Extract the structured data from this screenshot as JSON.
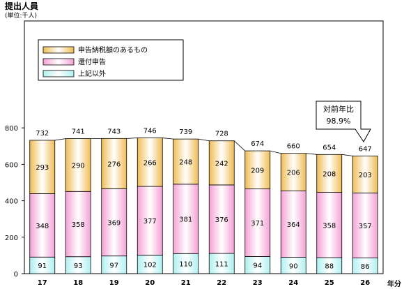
{
  "chart_data": {
    "type": "bar",
    "stacked": true,
    "title": "提出人員",
    "unit": "(単位:千人)",
    "xlabel": "年分",
    "categories": [
      "17",
      "18",
      "19",
      "20",
      "21",
      "22",
      "23",
      "24",
      "25",
      "26"
    ],
    "series": [
      {
        "name": "上記以外",
        "color": "#aef0f0",
        "values": [
          91,
          93,
          97,
          102,
          110,
          111,
          94,
          90,
          88,
          86
        ]
      },
      {
        "name": "還付申告",
        "color": "#f4a0d4",
        "values": [
          348,
          358,
          369,
          377,
          381,
          376,
          371,
          364,
          358,
          357
        ]
      },
      {
        "name": "申告納税額のあるもの",
        "color": "#f0bc52",
        "values": [
          293,
          290,
          276,
          266,
          248,
          242,
          209,
          206,
          208,
          203
        ]
      }
    ],
    "totals": [
      732,
      741,
      743,
      746,
      739,
      728,
      674,
      660,
      654,
      647
    ],
    "ylim": [
      0,
      1000
    ],
    "yticks": [
      0,
      200,
      400,
      600,
      800
    ],
    "legend_position": "top-left",
    "annotation": {
      "line1": "対前年比",
      "line2": "98.9%"
    }
  }
}
